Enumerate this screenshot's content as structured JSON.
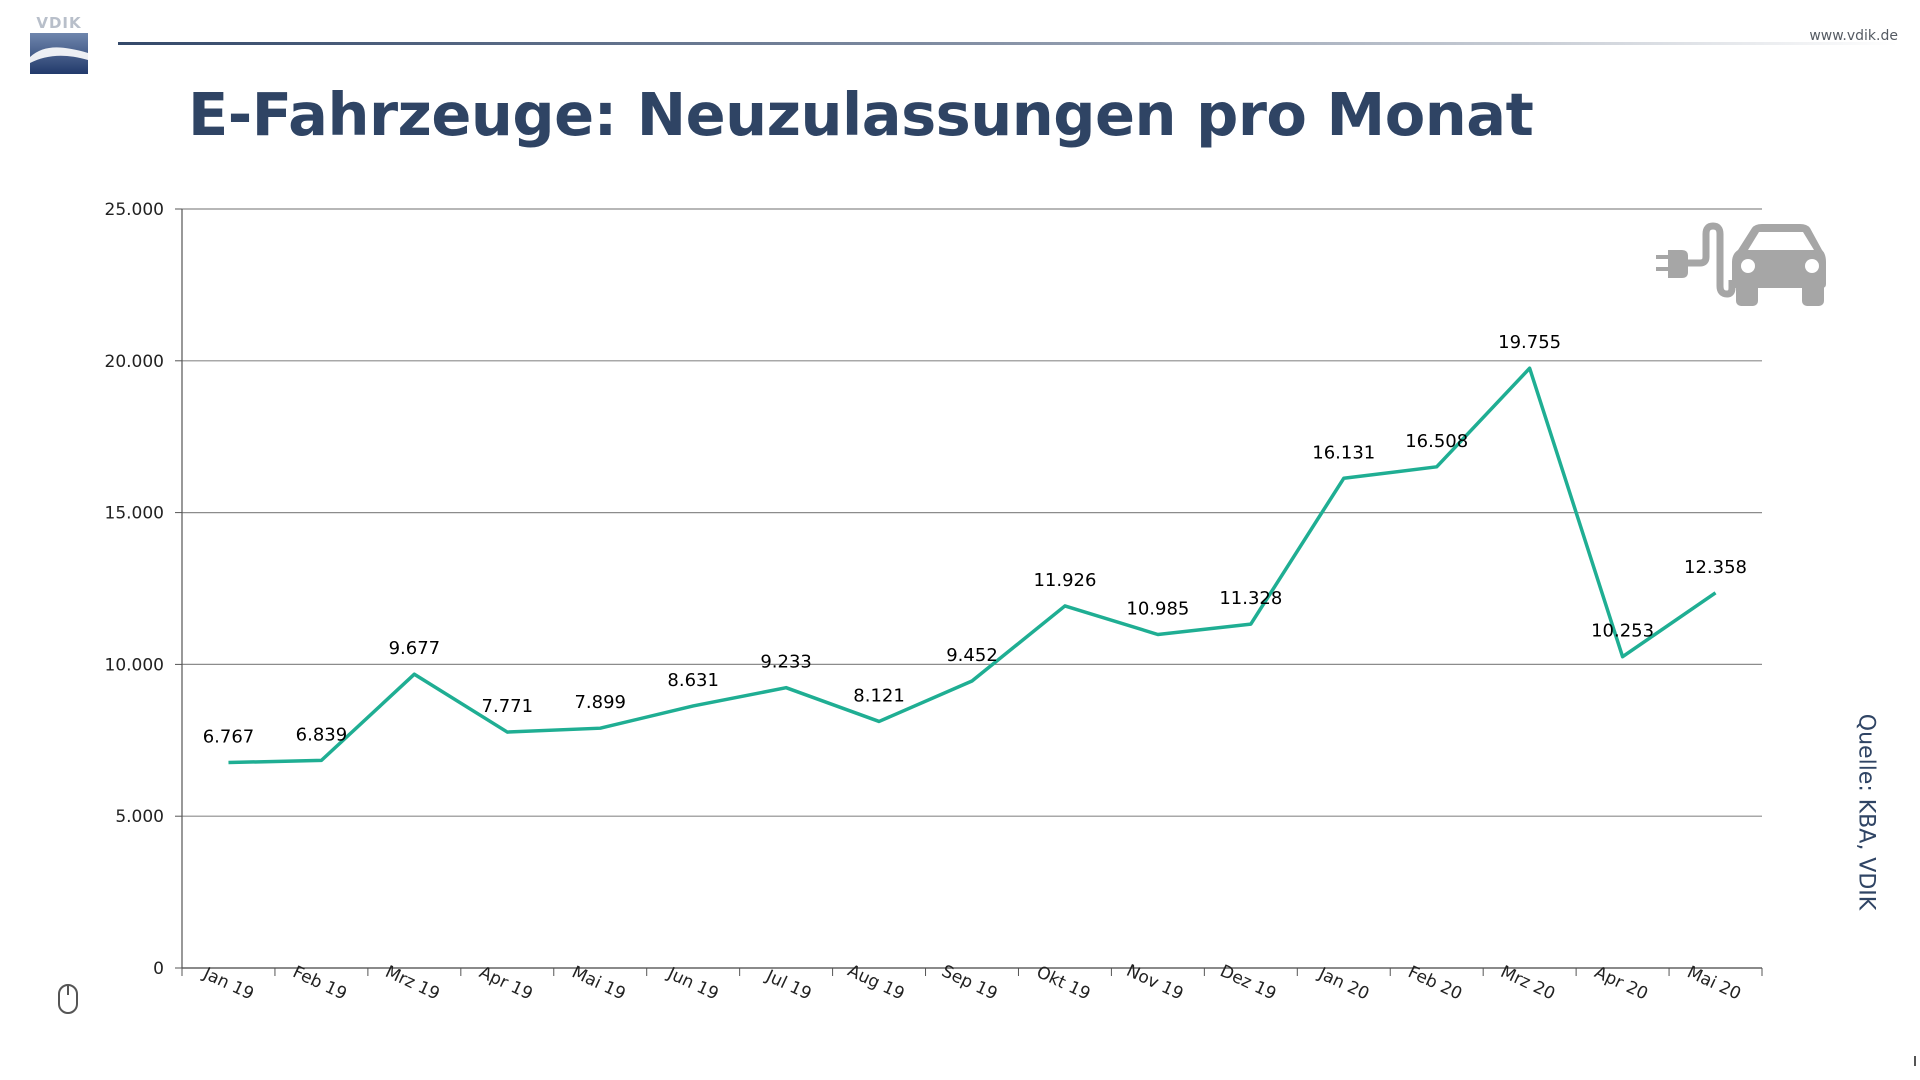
{
  "header": {
    "logo_text": "VDIK",
    "website": "www.vdik.de",
    "title": "E-Fahrzeuge: Neuzulassungen pro Monat",
    "source": "Quelle:  KBA, VDIK"
  },
  "colors": {
    "line": "#1fae93",
    "title": "#2f4464",
    "grid": "#8c8c8c",
    "icon": "#a6a6a6"
  },
  "icons": [
    "vdik-logo",
    "electric-car-icon",
    "mouse-icon"
  ],
  "chart_data": {
    "type": "line",
    "title": "",
    "xlabel": "",
    "ylabel": "",
    "ylim": [
      0,
      25000
    ],
    "yticks": [
      0,
      5000,
      10000,
      15000,
      20000,
      25000
    ],
    "ytick_labels": [
      "0",
      "5.000",
      "10.000",
      "15.000",
      "20.000",
      "25.000"
    ],
    "grid": true,
    "legend": "none",
    "categories": [
      "Jan 19",
      "Feb 19",
      "Mrz 19",
      "Apr 19",
      "Mai 19",
      "Jun 19",
      "Jul 19",
      "Aug 19",
      "Sep 19",
      "Okt 19",
      "Nov 19",
      "Dez 19",
      "Jan 20",
      "Feb 20",
      "Mrz 20",
      "Apr 20",
      "Mai 20"
    ],
    "series": [
      {
        "values": [
          6767,
          6839,
          9677,
          7771,
          7899,
          8631,
          9233,
          8121,
          9452,
          11926,
          10985,
          11328,
          16131,
          16508,
          19755,
          10253,
          12358
        ],
        "data_labels": [
          "6.767",
          "6.839",
          "9.677",
          "7.771",
          "7.899",
          "8.631",
          "9.233",
          "8.121",
          "9.452",
          "11.926",
          "10.985",
          "11.328",
          "16.131",
          "16.508",
          "19.755",
          "10.253",
          "12.358"
        ]
      }
    ]
  }
}
